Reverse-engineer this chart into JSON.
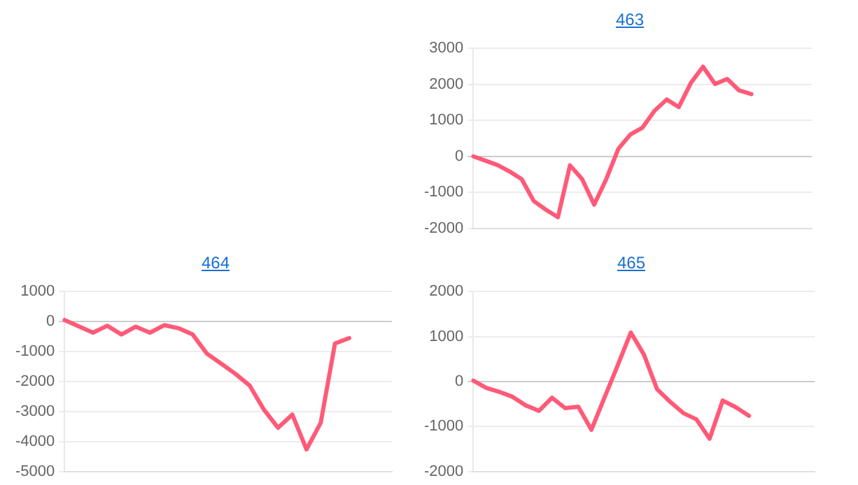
{
  "chart_data": [
    {
      "type": "line",
      "title": "463",
      "categories": [
        null,
        null,
        null,
        null,
        null,
        null,
        null,
        null,
        null,
        null,
        null,
        null,
        null,
        null,
        null,
        null,
        null,
        null,
        null,
        null,
        null,
        null,
        null,
        null,
        null,
        null,
        null,
        null,
        null
      ],
      "values": [
        0,
        -120,
        -240,
        -420,
        -630,
        -1240,
        -1480,
        -1690,
        -250,
        -630,
        -1340,
        -630,
        210,
        610,
        800,
        1270,
        1580,
        1370,
        2040,
        2490,
        2010,
        2150,
        1830,
        1730,
        null,
        null,
        null,
        null,
        null
      ],
      "color": "#ff5a78",
      "ylim": [
        -2000,
        3000
      ],
      "yticks": [
        -2000,
        -1000,
        0,
        1000,
        2000,
        3000
      ],
      "grid": "y",
      "tick_labels": "y",
      "marker": "none"
    },
    {
      "type": "line",
      "title": "464",
      "categories": [
        null,
        null,
        null,
        null,
        null,
        null,
        null,
        null,
        null,
        null,
        null,
        null,
        null,
        null,
        null,
        null,
        null,
        null,
        null,
        null,
        null,
        null,
        null,
        null
      ],
      "values": [
        50,
        -160,
        -370,
        -140,
        -430,
        -170,
        -370,
        -120,
        -220,
        -430,
        -1070,
        -1400,
        -1740,
        -2130,
        -2930,
        -3540,
        -3100,
        -4260,
        -3370,
        -730,
        -550,
        null,
        null,
        null
      ],
      "color": "#ff5a78",
      "ylim": [
        -5000,
        1000
      ],
      "yticks": [
        -5000,
        -4000,
        -3000,
        -2000,
        -1000,
        0,
        1000
      ],
      "grid": "y",
      "tick_labels": "y",
      "marker": "none"
    },
    {
      "type": "line",
      "title": "465",
      "categories": [
        null,
        null,
        null,
        null,
        null,
        null,
        null,
        null,
        null,
        null,
        null,
        null,
        null,
        null,
        null,
        null,
        null,
        null,
        null,
        null,
        null,
        null,
        null,
        null,
        null,
        null,
        null
      ],
      "values": [
        20,
        -140,
        -230,
        -340,
        -530,
        -650,
        -360,
        -590,
        -560,
        -1070,
        -350,
        360,
        1090,
        600,
        -170,
        -450,
        -700,
        -840,
        -1270,
        -420,
        -570,
        -760,
        null,
        null,
        null,
        null,
        null
      ],
      "color": "#ff5a78",
      "ylim": [
        -2000,
        2000
      ],
      "yticks": [
        -2000,
        -1000,
        0,
        1000,
        2000
      ],
      "grid": "y",
      "tick_labels": "y",
      "marker": "none"
    }
  ]
}
